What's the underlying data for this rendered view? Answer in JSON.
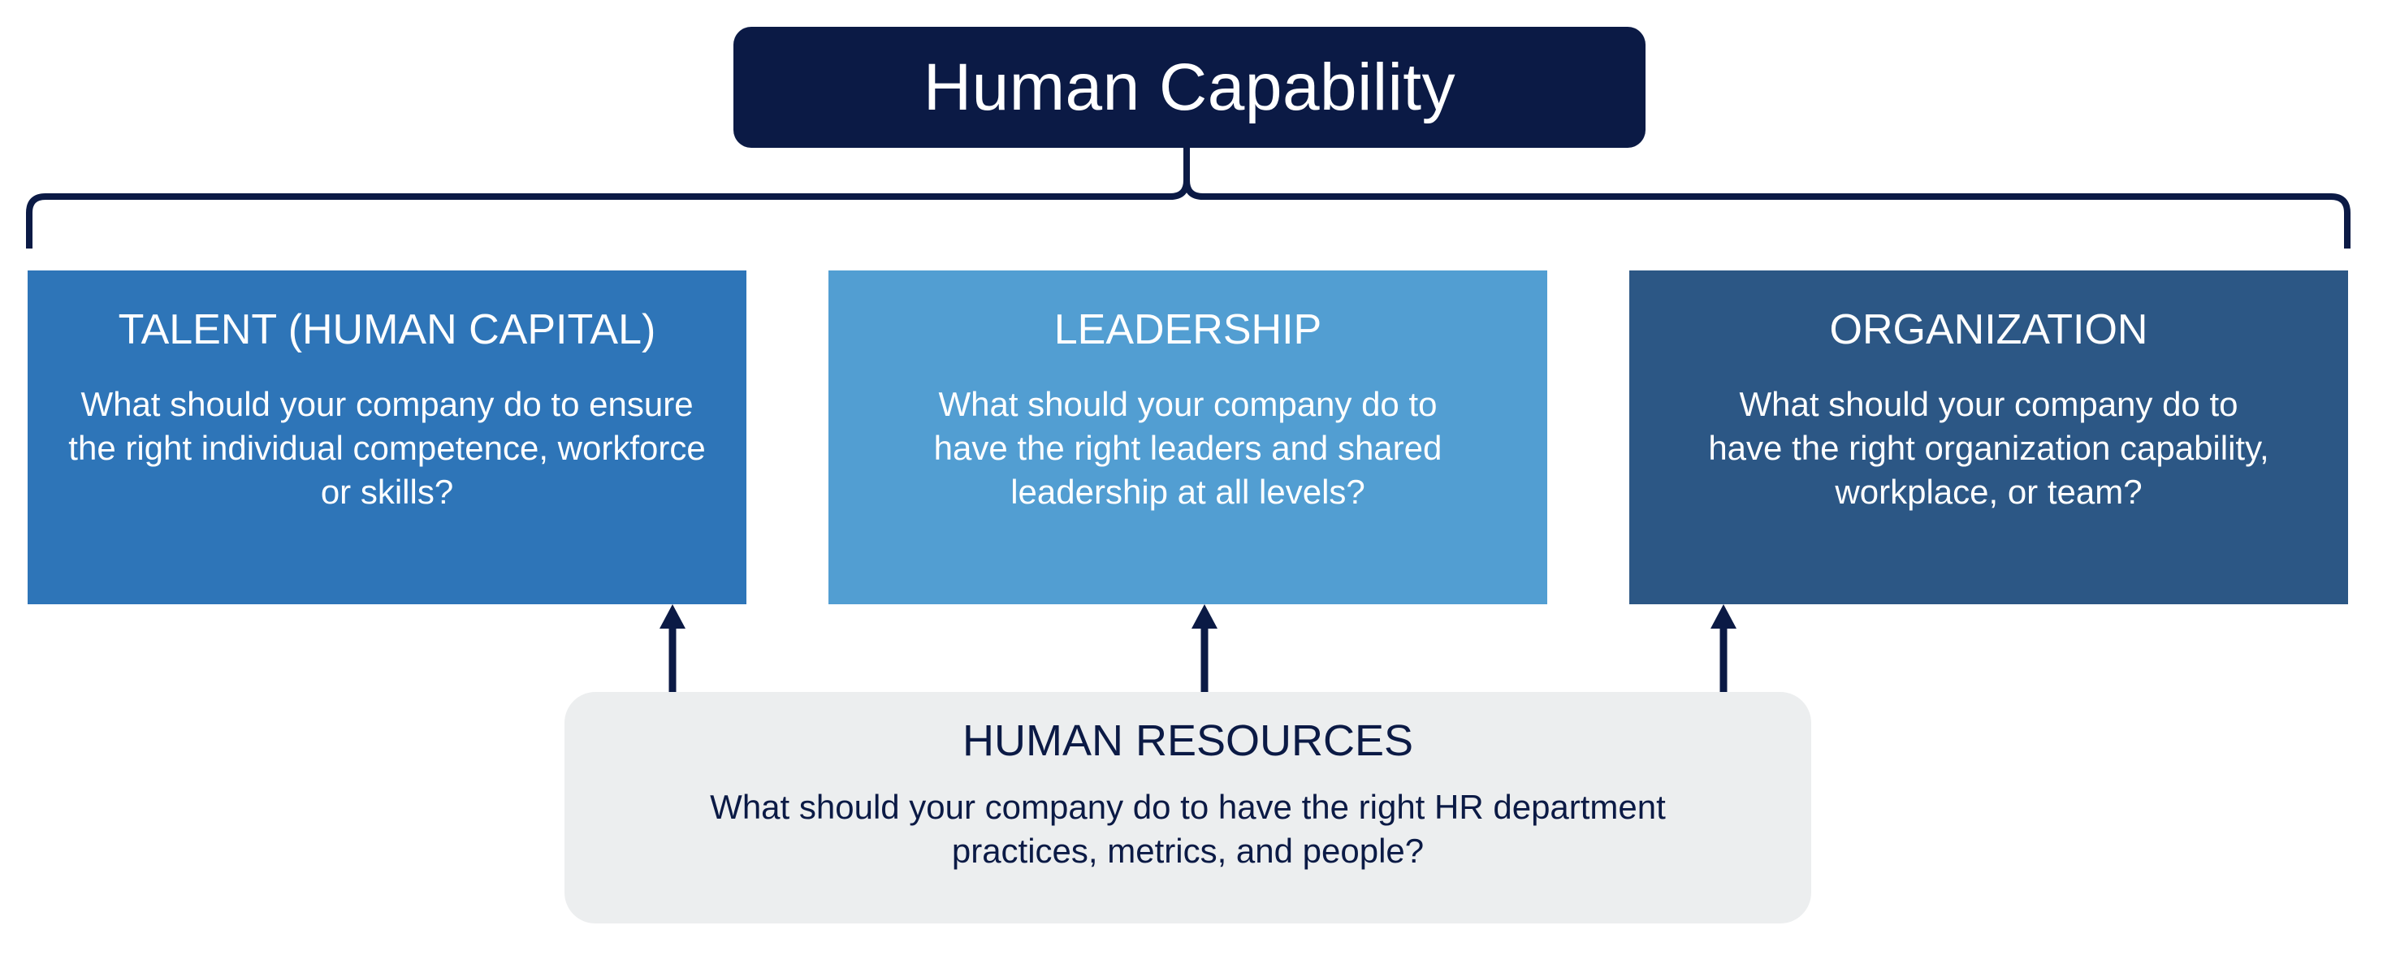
{
  "title": {
    "label": "Human Capability"
  },
  "pillars": [
    {
      "heading": "TALENT (HUMAN CAPITAL)",
      "question": "What should your company do to ensure the right individual competence, workforce or skills?"
    },
    {
      "heading": "LEADERSHIP",
      "question": "What should your company do to have the right leaders and shared leadership at all levels?"
    },
    {
      "heading": "ORGANIZATION",
      "question": "What should your company do to have the right organization capability, workplace, or team?"
    }
  ],
  "human_resources": {
    "heading": "HUMAN RESOURCES",
    "question": "What should your company do to have the right HR department practices, metrics, and people?"
  },
  "colors": {
    "navy": "#0b1a45",
    "talent": "#2e75b8",
    "leadership": "#529ed2",
    "organization": "#2c5785",
    "hr_fill": "#eceeef",
    "hr_text": "#0b1a45",
    "connector": "#0b1a45"
  }
}
